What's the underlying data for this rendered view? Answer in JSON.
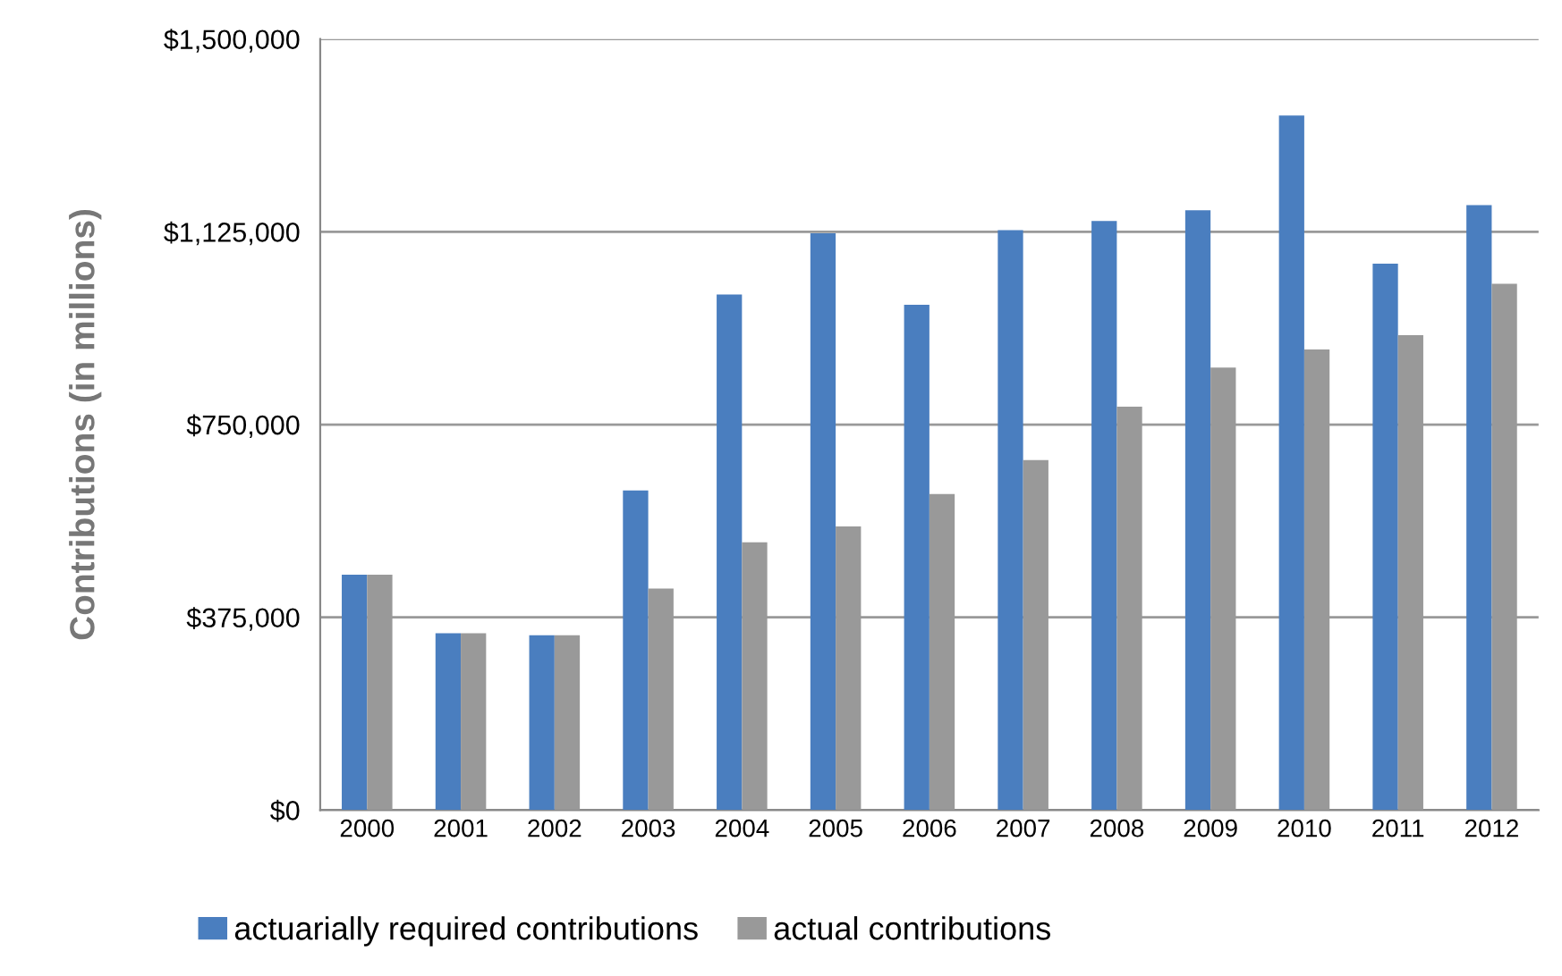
{
  "chart_data": {
    "type": "bar",
    "ylabel": "Contributions (in millions)",
    "categories": [
      "2000",
      "2001",
      "2002",
      "2003",
      "2004",
      "2005",
      "2006",
      "2007",
      "2008",
      "2009",
      "2010",
      "2011",
      "2012"
    ],
    "series": [
      {
        "name": "actuarially required contributions",
        "color": "#4a7ebf",
        "values": [
          458000,
          344000,
          340000,
          622000,
          1003000,
          1122000,
          983000,
          1128000,
          1146000,
          1167000,
          1351000,
          1063000,
          1177000
        ]
      },
      {
        "name": "actual contributions",
        "color": "#999999",
        "values": [
          458000,
          344000,
          340000,
          431000,
          521000,
          552000,
          615000,
          681000,
          785000,
          861000,
          896000,
          924000,
          1024000
        ]
      }
    ],
    "ylim": [
      0,
      1500000
    ],
    "yticks": [
      {
        "value": 0,
        "label": "$0"
      },
      {
        "value": 375000,
        "label": "$375,000"
      },
      {
        "value": 750000,
        "label": "$750,000"
      },
      {
        "value": 1125000,
        "label": "$1,125,000"
      },
      {
        "value": 1500000,
        "label": "$1,500,000"
      }
    ],
    "grid": "y",
    "legend": "bottom"
  }
}
